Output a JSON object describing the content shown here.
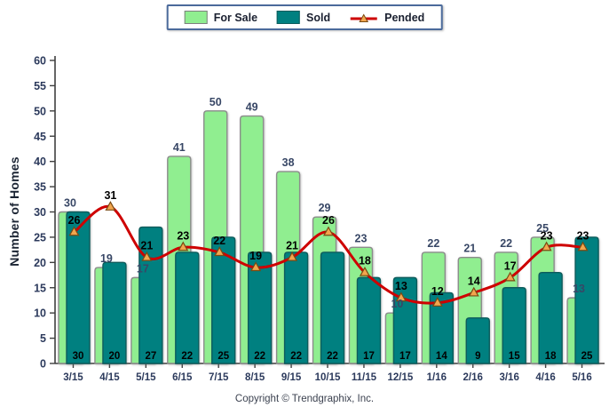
{
  "legend": {
    "items": [
      {
        "label": "For Sale",
        "swatch_color": "#90EE90",
        "swatch_border": "#7f7f7f"
      },
      {
        "label": "Sold",
        "swatch_color": "#008080",
        "swatch_border": "#0d5c5c"
      },
      {
        "label": "Pended",
        "line_color": "#CE0000",
        "marker_color": "#F2A64E"
      }
    ]
  },
  "footer": {
    "copyright": "Copyright © Trendgraphix, Inc."
  },
  "chart_data": {
    "type": "bar",
    "categories": [
      "3/15",
      "4/15",
      "5/15",
      "6/15",
      "7/15",
      "8/15",
      "9/15",
      "10/15",
      "11/15",
      "12/15",
      "1/16",
      "2/16",
      "3/16",
      "4/16",
      "5/16"
    ],
    "series": [
      {
        "name": "For Sale",
        "type": "bar",
        "color": "#90EE90",
        "border": "#8c8c8c",
        "values": [
          30,
          19,
          17,
          41,
          50,
          49,
          38,
          29,
          23,
          10,
          22,
          21,
          22,
          25,
          13
        ]
      },
      {
        "name": "Sold",
        "type": "bar",
        "color": "#008080",
        "border": "#0d5c5c",
        "values": [
          30,
          20,
          27,
          22,
          25,
          22,
          22,
          22,
          17,
          17,
          14,
          9,
          15,
          18,
          25
        ]
      },
      {
        "name": "Pended",
        "type": "line",
        "color": "#CE0000",
        "marker": "triangle",
        "marker_color": "#F2A64E",
        "marker_border": "#7a4a12",
        "values": [
          26,
          31,
          21,
          23,
          22,
          19,
          21,
          26,
          18,
          13,
          12,
          14,
          17,
          23,
          23
        ]
      }
    ],
    "title": "",
    "xlabel": "",
    "ylabel": "Number of Homes",
    "ylim": [
      0,
      60
    ],
    "yticks": [
      0,
      5,
      10,
      15,
      20,
      25,
      30,
      35,
      40,
      45,
      50,
      55,
      60
    ],
    "grid": false,
    "legend_position": "top",
    "label_colors": {
      "for_sale_labels": "#384766",
      "sold_labels": "#000000",
      "pended_labels": "#000000",
      "axis_tick_labels": "#2c3a5c",
      "axis_line": "#3f3f3f"
    }
  }
}
